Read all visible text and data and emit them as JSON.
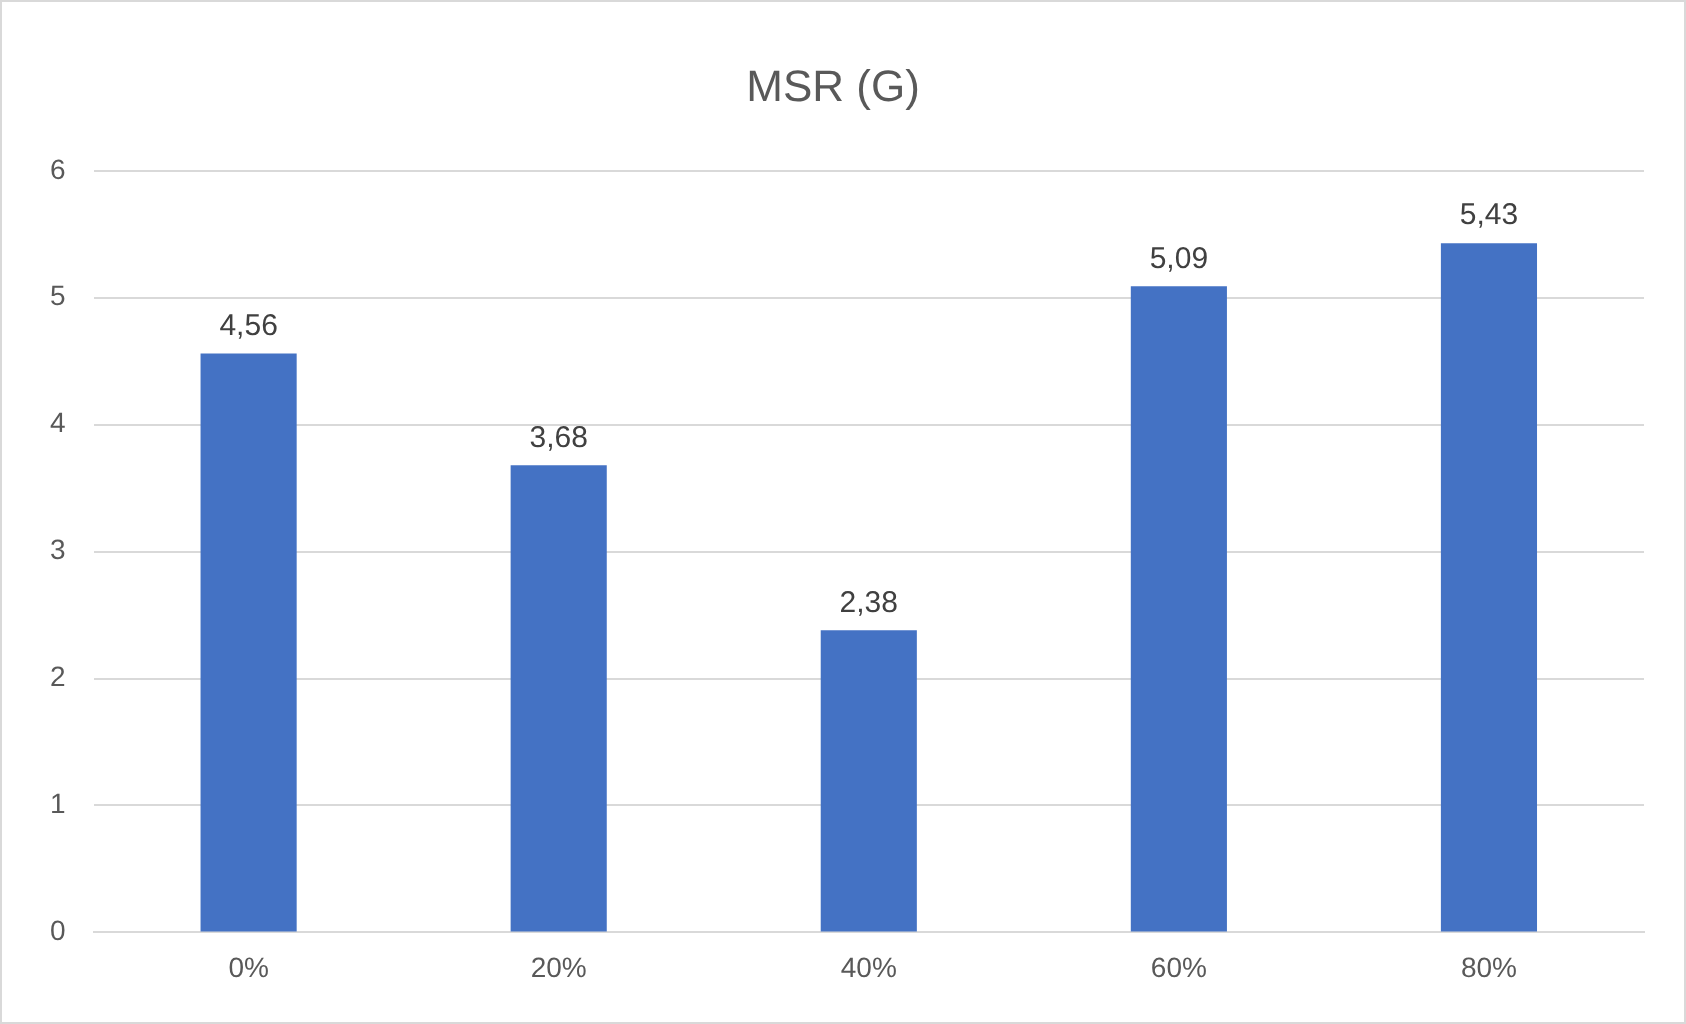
{
  "chart_data": {
    "type": "bar",
    "title": "MSR (G)",
    "categories": [
      "0%",
      "20%",
      "40%",
      "60%",
      "80%"
    ],
    "values": [
      4.56,
      3.68,
      2.38,
      5.09,
      5.43
    ],
    "value_labels": [
      "4,56",
      "3,68",
      "2,38",
      "5,09",
      "5,43"
    ],
    "color": "#4472c4",
    "ylim": [
      0,
      6
    ],
    "yticks": [
      0,
      1,
      2,
      3,
      4,
      5,
      6
    ],
    "grid": "y"
  }
}
